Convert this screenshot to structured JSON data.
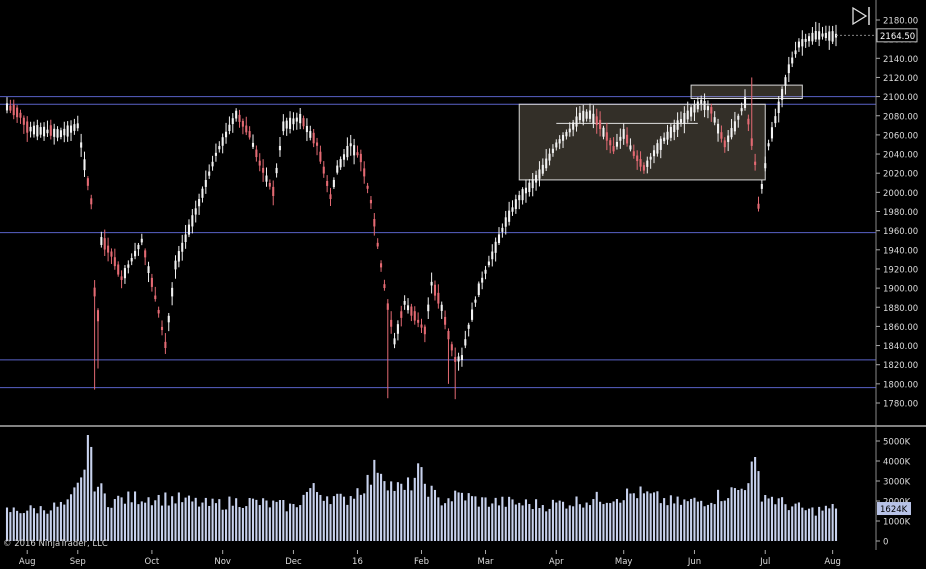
{
  "toolbar": {
    "play_icon": "skip-to-end-icon"
  },
  "footer": {
    "copyright": "© 2016 NinjaTrader, LLC"
  },
  "chart_data": {
    "type": "candlestick",
    "price_axis": {
      "min": 1770,
      "max": 2185,
      "ticks": [
        1780,
        1800,
        1820,
        1840,
        1860,
        1880,
        1900,
        1920,
        1940,
        1960,
        1980,
        2000,
        2020,
        2040,
        2060,
        2080,
        2100,
        2120,
        2140,
        2160,
        2180
      ],
      "last_price_label": "2164.50"
    },
    "volume_axis": {
      "max": 5600,
      "ticks": [
        0,
        1000,
        2000,
        3000,
        4000,
        5000
      ],
      "tick_labels": [
        "0",
        "1000K",
        "2000K",
        "3000K",
        "4000K",
        "5000K"
      ],
      "last_volume_label": "1624K"
    },
    "time_axis": {
      "labels": [
        {
          "label": "Aug",
          "i": 6
        },
        {
          "label": "Sep",
          "i": 21
        },
        {
          "label": "Oct",
          "i": 43
        },
        {
          "label": "Nov",
          "i": 64
        },
        {
          "label": "Dec",
          "i": 85
        },
        {
          "label": "16",
          "i": 104
        },
        {
          "label": "Feb",
          "i": 123
        },
        {
          "label": "Mar",
          "i": 142
        },
        {
          "label": "Apr",
          "i": 163
        },
        {
          "label": "May",
          "i": 183
        },
        {
          "label": "Jun",
          "i": 204
        },
        {
          "label": "Jul",
          "i": 225
        },
        {
          "label": "Aug",
          "i": 245
        }
      ],
      "bar_count": 247
    },
    "anchors": [
      [
        0,
        2090
      ],
      [
        4,
        2080
      ],
      [
        6,
        2067
      ],
      [
        16,
        2062
      ],
      [
        21,
        2070
      ],
      [
        25,
        1990
      ],
      [
        26,
        1895
      ],
      [
        27,
        1870
      ],
      [
        28,
        1950
      ],
      [
        31,
        1935
      ],
      [
        34,
        1910
      ],
      [
        40,
        1950
      ],
      [
        45,
        1875
      ],
      [
        47,
        1840
      ],
      [
        50,
        1925
      ],
      [
        57,
        1990
      ],
      [
        62,
        2040
      ],
      [
        68,
        2082
      ],
      [
        72,
        2060
      ],
      [
        75,
        2030
      ],
      [
        79,
        2000
      ],
      [
        82,
        2070
      ],
      [
        87,
        2078
      ],
      [
        92,
        2050
      ],
      [
        96,
        1995
      ],
      [
        98,
        2025
      ],
      [
        102,
        2050
      ],
      [
        105,
        2035
      ],
      [
        108,
        1990
      ],
      [
        110,
        1945
      ],
      [
        113,
        1880
      ],
      [
        115,
        1845
      ],
      [
        118,
        1885
      ],
      [
        121,
        1870
      ],
      [
        124,
        1855
      ],
      [
        126,
        1905
      ],
      [
        129,
        1880
      ],
      [
        131,
        1850
      ],
      [
        133,
        1825
      ],
      [
        135,
        1828
      ],
      [
        137,
        1860
      ],
      [
        140,
        1900
      ],
      [
        144,
        1935
      ],
      [
        148,
        1970
      ],
      [
        152,
        1995
      ],
      [
        156,
        2010
      ],
      [
        159,
        2025
      ],
      [
        163,
        2050
      ],
      [
        167,
        2065
      ],
      [
        170,
        2080
      ],
      [
        173,
        2082
      ],
      [
        176,
        2070
      ],
      [
        180,
        2045
      ],
      [
        183,
        2062
      ],
      [
        186,
        2040
      ],
      [
        189,
        2025
      ],
      [
        193,
        2047
      ],
      [
        196,
        2060
      ],
      [
        200,
        2075
      ],
      [
        203,
        2085
      ],
      [
        206,
        2095
      ],
      [
        209,
        2085
      ],
      [
        213,
        2050
      ],
      [
        216,
        2070
      ],
      [
        219,
        2095
      ],
      [
        222,
        2030
      ],
      [
        223,
        1985
      ],
      [
        226,
        2050
      ],
      [
        229,
        2090
      ],
      [
        232,
        2130
      ],
      [
        235,
        2155
      ],
      [
        240,
        2165
      ],
      [
        245,
        2164
      ]
    ],
    "volume_anchors": [
      [
        0,
        1500
      ],
      [
        10,
        1600
      ],
      [
        18,
        1800
      ],
      [
        22,
        2900
      ],
      [
        24,
        5000
      ],
      [
        26,
        3000
      ],
      [
        30,
        2000
      ],
      [
        40,
        2200
      ],
      [
        50,
        2100
      ],
      [
        60,
        1800
      ],
      [
        70,
        2000
      ],
      [
        85,
        1700
      ],
      [
        90,
        2600
      ],
      [
        100,
        2000
      ],
      [
        108,
        3100
      ],
      [
        110,
        3900
      ],
      [
        114,
        2800
      ],
      [
        118,
        2500
      ],
      [
        122,
        3400
      ],
      [
        124,
        2900
      ],
      [
        128,
        2000
      ],
      [
        135,
        2300
      ],
      [
        140,
        2000
      ],
      [
        150,
        1900
      ],
      [
        160,
        1800
      ],
      [
        175,
        2100
      ],
      [
        187,
        2400
      ],
      [
        198,
        1900
      ],
      [
        206,
        2000
      ],
      [
        218,
        2600
      ],
      [
        221,
        3600
      ],
      [
        222,
        4200
      ],
      [
        224,
        2400
      ],
      [
        230,
        1900
      ],
      [
        238,
        1500
      ],
      [
        245,
        1624
      ]
    ],
    "down_bars": [
      13,
      24,
      25,
      26,
      27,
      33,
      44,
      45,
      46,
      74,
      75,
      78,
      79,
      95,
      96,
      108,
      109,
      110,
      111,
      112,
      113,
      117,
      120,
      123,
      124,
      130,
      131,
      132,
      178,
      179,
      186,
      187,
      212,
      213,
      220,
      221,
      222
    ],
    "horizontal_levels": [
      2100,
      2092,
      1958,
      1825,
      1796
    ],
    "annotations": [
      {
        "kind": "zone",
        "i0": 152,
        "i1": 225,
        "price_top": 2092,
        "price_bottom": 2013
      },
      {
        "kind": "zone",
        "i0": 203,
        "i1": 236,
        "price_top": 2112,
        "price_bottom": 2098
      },
      {
        "kind": "line",
        "i0": 163,
        "i1": 205,
        "price": 2072
      }
    ]
  }
}
